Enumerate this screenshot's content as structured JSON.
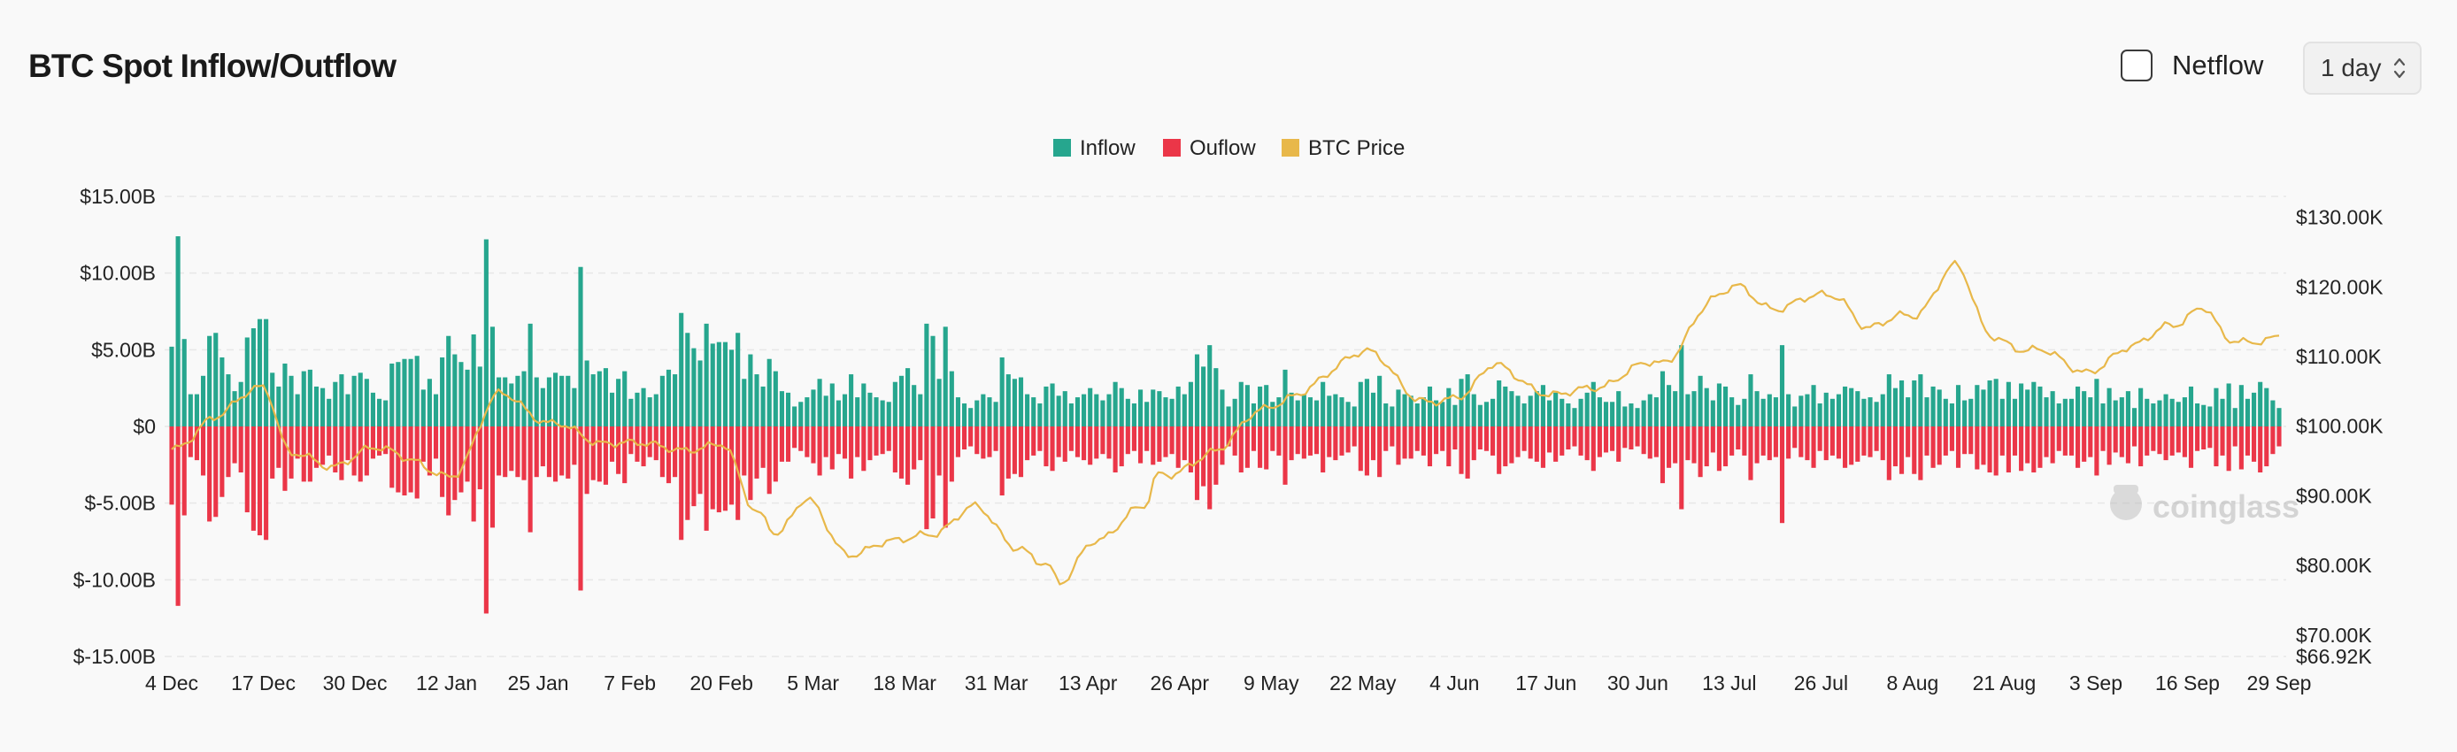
{
  "header": {
    "title": "BTC Spot Inflow/Outflow",
    "netflow_label": "Netflow",
    "netflow_checked": false,
    "interval_value": "1 day"
  },
  "colors": {
    "inflow": "#26a68e",
    "outflow": "#eb3648",
    "price": "#e8b84a",
    "grid": "#e8e8e8",
    "axis_text": "#222222"
  },
  "watermark": {
    "text": "coinglass",
    "icon": "coinglass-logo-icon"
  },
  "chart_data": {
    "type": "bar",
    "title": "",
    "legend": [
      "Inflow",
      "Ouflow",
      "BTC Price"
    ],
    "legend_position": "top-center",
    "grid": true,
    "x_start": "2024-12-04",
    "x_end": "2025-09-29",
    "x_ticks": [
      "4 Dec",
      "17 Dec",
      "30 Dec",
      "12 Jan",
      "25 Jan",
      "7 Feb",
      "20 Feb",
      "5 Mar",
      "18 Mar",
      "31 Mar",
      "13 Apr",
      "26 Apr",
      "9 May",
      "22 May",
      "4 Jun",
      "17 Jun",
      "30 Jun",
      "13 Jul",
      "26 Jul",
      "8 Aug",
      "21 Aug",
      "3 Sep",
      "16 Sep",
      "29 Sep"
    ],
    "y_left": {
      "ticks": [
        "$15.00B",
        "$10.00B",
        "$5.00B",
        "$0",
        "$-5.00B",
        "$-10.00B",
        "$-15.00B"
      ],
      "tick_values": [
        15,
        10,
        5,
        0,
        -5,
        -10,
        -15
      ],
      "range": [
        -15,
        15
      ],
      "unit": "B USD"
    },
    "y_right": {
      "ticks": [
        "$130.00K",
        "$120.00K",
        "$110.00K",
        "$100.00K",
        "$90.00K",
        "$80.00K",
        "$70.00K",
        "$66.92K"
      ],
      "tick_values": [
        130,
        120,
        110,
        100,
        90,
        80,
        70,
        66.92
      ],
      "range": [
        66.92,
        133
      ],
      "unit": "K USD"
    },
    "series": [
      {
        "name": "Inflow",
        "type": "bar",
        "values": [
          5.2,
          12.4,
          5.7,
          2.1,
          2.1,
          3.3,
          5.9,
          6.1,
          4.5,
          3.4,
          2.3,
          2.9,
          5.8,
          6.4,
          7.0,
          7.0,
          3.5,
          2.6,
          4.1,
          3.3,
          2.1,
          3.6,
          3.7,
          2.6,
          2.5,
          1.8,
          2.9,
          3.4,
          2.1,
          3.3,
          3.5,
          3.1,
          2.2,
          1.8,
          1.7,
          4.1,
          4.2,
          4.4,
          4.4,
          4.6,
          2.4,
          3.1,
          2.1,
          4.5,
          5.9,
          4.7,
          4.2,
          3.7,
          6.0,
          3.9,
          12.2,
          6.5,
          3.2,
          3.2,
          2.8,
          3.3,
          3.6,
          6.7,
          3.2,
          2.5,
          3.2,
          3.5,
          3.3,
          3.3,
          2.5,
          10.4,
          4.3,
          3.4,
          3.6,
          3.8,
          2.2,
          3.1,
          3.6,
          1.8,
          2.2,
          2.5,
          1.9,
          2.1,
          3.3,
          3.7,
          3.4,
          7.4,
          6.1,
          5.1,
          4.3,
          6.7,
          5.4,
          5.5,
          5.5,
          5.0,
          6.1,
          3.1,
          4.7,
          3.4,
          2.6,
          4.4,
          3.6,
          2.3,
          2.2,
          1.3,
          1.6,
          1.9,
          2.4,
          3.1,
          2.0,
          2.8,
          1.7,
          2.1,
          3.4,
          1.9,
          2.8,
          2.2,
          1.9,
          1.7,
          1.6,
          2.9,
          3.3,
          3.8,
          2.7,
          2.1,
          6.7,
          5.9,
          3.1,
          6.5,
          3.6,
          1.9,
          1.5,
          1.2,
          1.7,
          2.1,
          1.9,
          1.6,
          4.5,
          3.4,
          3.1,
          3.2,
          2.1,
          1.9,
          1.5,
          2.6,
          2.8,
          2.0,
          2.3,
          1.5,
          1.9,
          2.1,
          2.5,
          2.1,
          1.7,
          2.1,
          2.9,
          2.5,
          1.8,
          1.5,
          2.4,
          1.6,
          2.4,
          2.3,
          1.9,
          1.8,
          2.6,
          2.1,
          2.9,
          4.7,
          3.9,
          5.3,
          3.8,
          2.4,
          1.3,
          1.8,
          2.9,
          2.7,
          1.5,
          2.6,
          2.7,
          1.6,
          1.9,
          3.7,
          2.2,
          1.7,
          2.1,
          1.9,
          1.7,
          2.9,
          2.0,
          2.1,
          1.9,
          1.6,
          1.3,
          2.9,
          3.1,
          2.2,
          3.3,
          1.5,
          1.3,
          2.4,
          2.1,
          2.0,
          1.5,
          1.9,
          2.6,
          1.7,
          1.6,
          2.5,
          1.4,
          3.1,
          3.4,
          2.1,
          1.4,
          1.6,
          1.8,
          3.0,
          2.6,
          2.3,
          2.0,
          1.5,
          2.0,
          2.3,
          2.7,
          1.7,
          2.2,
          1.8,
          1.5,
          1.2,
          1.8,
          2.2,
          2.9,
          1.9,
          1.6,
          1.6,
          2.3,
          1.3,
          1.5,
          1.2,
          1.7,
          2.1,
          1.9,
          3.6,
          2.7,
          2.3,
          5.3,
          2.1,
          2.3,
          3.3,
          2.5,
          1.7,
          2.8,
          2.6,
          1.9,
          1.4,
          1.8,
          3.4,
          2.3,
          1.8,
          2.1,
          1.9,
          5.3,
          2.1,
          1.3,
          2.0,
          2.1,
          2.7,
          1.5,
          2.2,
          1.8,
          2.1,
          2.6,
          2.5,
          2.3,
          1.8,
          1.9,
          1.6,
          2.1,
          3.4,
          2.5,
          3.0,
          1.9,
          3.0,
          3.4,
          1.9,
          2.6,
          2.4,
          1.8,
          1.5,
          2.7,
          1.7,
          1.8,
          2.7,
          2.4,
          3.0,
          3.1,
          1.8,
          2.9,
          1.8,
          2.8,
          2.4,
          2.9,
          2.6,
          1.9,
          2.3,
          1.5,
          1.8,
          1.8,
          2.6,
          2.3,
          1.9,
          3.1,
          1.5,
          2.5,
          1.7,
          1.9,
          2.3,
          1.2,
          2.5,
          1.8,
          1.5,
          1.7,
          2.1,
          1.8,
          1.6,
          1.9,
          2.6,
          1.5,
          1.4,
          1.3,
          2.5,
          1.8,
          2.8,
          1.2,
          2.7,
          1.8,
          2.2,
          2.9,
          2.5,
          1.7,
          1.2
        ]
      },
      {
        "name": "Ouflow",
        "type": "bar",
        "values": [
          -5.1,
          -11.7,
          -5.8,
          -2.0,
          -2.2,
          -3.2,
          -6.2,
          -5.9,
          -4.6,
          -3.3,
          -2.4,
          -3.0,
          -5.6,
          -6.8,
          -7.1,
          -7.4,
          -3.4,
          -2.7,
          -4.2,
          -3.4,
          -2.1,
          -3.6,
          -3.6,
          -2.7,
          -2.5,
          -1.9,
          -3.0,
          -3.5,
          -2.2,
          -3.2,
          -3.6,
          -3.2,
          -2.1,
          -1.9,
          -1.8,
          -4.0,
          -4.3,
          -4.5,
          -4.3,
          -4.7,
          -2.3,
          -3.2,
          -2.1,
          -4.6,
          -5.8,
          -4.8,
          -4.3,
          -3.6,
          -6.2,
          -4.1,
          -12.2,
          -6.6,
          -3.2,
          -3.3,
          -2.9,
          -3.3,
          -3.5,
          -6.9,
          -3.3,
          -2.6,
          -3.3,
          -3.6,
          -3.2,
          -3.4,
          -2.5,
          -10.7,
          -4.4,
          -3.5,
          -3.6,
          -3.8,
          -2.3,
          -3.1,
          -3.7,
          -1.8,
          -2.3,
          -2.6,
          -2.0,
          -2.2,
          -3.3,
          -3.7,
          -3.3,
          -7.4,
          -6.1,
          -5.2,
          -4.4,
          -6.8,
          -5.4,
          -5.6,
          -5.5,
          -5.1,
          -6.1,
          -3.2,
          -4.8,
          -3.4,
          -2.7,
          -4.4,
          -3.6,
          -2.3,
          -2.3,
          -1.4,
          -1.6,
          -2.0,
          -2.4,
          -3.2,
          -2.0,
          -2.8,
          -1.8,
          -2.1,
          -3.4,
          -2.0,
          -2.9,
          -2.2,
          -1.9,
          -1.8,
          -1.6,
          -3.0,
          -3.4,
          -3.8,
          -2.8,
          -2.2,
          -6.7,
          -6.0,
          -3.2,
          -6.6,
          -3.6,
          -2.0,
          -1.5,
          -1.3,
          -1.8,
          -2.1,
          -2.0,
          -1.6,
          -4.5,
          -3.4,
          -3.1,
          -3.3,
          -2.2,
          -1.9,
          -1.6,
          -2.6,
          -2.9,
          -2.0,
          -2.3,
          -1.6,
          -2.0,
          -2.2,
          -2.5,
          -2.1,
          -1.8,
          -2.1,
          -3.0,
          -2.6,
          -1.8,
          -1.6,
          -2.4,
          -1.6,
          -2.5,
          -2.3,
          -2.0,
          -1.8,
          -2.7,
          -2.2,
          -3.0,
          -4.8,
          -3.9,
          -5.4,
          -3.8,
          -2.5,
          -1.3,
          -1.9,
          -3.0,
          -2.7,
          -1.6,
          -2.7,
          -2.8,
          -1.6,
          -1.9,
          -3.8,
          -2.2,
          -1.8,
          -2.1,
          -1.9,
          -1.8,
          -3.0,
          -2.0,
          -2.2,
          -1.9,
          -1.7,
          -1.3,
          -2.9,
          -3.2,
          -2.2,
          -3.3,
          -1.6,
          -1.3,
          -2.5,
          -2.1,
          -2.1,
          -1.6,
          -1.9,
          -2.6,
          -1.8,
          -1.6,
          -2.6,
          -1.5,
          -3.1,
          -3.4,
          -2.2,
          -1.5,
          -1.6,
          -1.9,
          -3.1,
          -2.6,
          -2.4,
          -2.0,
          -1.6,
          -2.1,
          -2.3,
          -2.7,
          -1.7,
          -2.3,
          -1.9,
          -1.5,
          -1.3,
          -1.9,
          -2.2,
          -2.9,
          -2.0,
          -1.7,
          -1.6,
          -2.3,
          -1.4,
          -1.5,
          -1.3,
          -1.8,
          -2.1,
          -2.0,
          -3.7,
          -2.7,
          -2.4,
          -5.4,
          -2.2,
          -2.4,
          -3.3,
          -2.6,
          -1.7,
          -2.9,
          -2.6,
          -1.9,
          -1.5,
          -1.9,
          -3.5,
          -2.4,
          -1.9,
          -2.2,
          -2.0,
          -6.3,
          -2.1,
          -1.4,
          -2.0,
          -2.2,
          -2.7,
          -1.6,
          -2.2,
          -1.9,
          -2.1,
          -2.7,
          -2.5,
          -2.3,
          -1.9,
          -2.0,
          -1.6,
          -2.2,
          -3.5,
          -2.6,
          -3.1,
          -2.0,
          -3.1,
          -3.5,
          -1.9,
          -2.7,
          -2.5,
          -1.9,
          -1.6,
          -2.7,
          -1.8,
          -1.8,
          -2.8,
          -2.5,
          -3.0,
          -3.2,
          -1.9,
          -3.0,
          -1.9,
          -2.9,
          -2.4,
          -3.0,
          -2.7,
          -2.0,
          -2.4,
          -1.6,
          -1.9,
          -1.9,
          -2.7,
          -2.3,
          -2.0,
          -3.2,
          -1.6,
          -2.5,
          -1.7,
          -2.0,
          -2.4,
          -1.3,
          -2.6,
          -1.9,
          -1.6,
          -1.8,
          -2.2,
          -1.9,
          -1.7,
          -2.0,
          -2.7,
          -1.6,
          -1.5,
          -1.4,
          -2.6,
          -1.9,
          -2.9,
          -1.3,
          -2.8,
          -1.9,
          -2.3,
          -3.0,
          -2.6,
          -1.8,
          -1.3
        ]
      },
      {
        "name": "BTC Price",
        "type": "line",
        "axis": "right",
        "x_dates": [
          "2024-12-04",
          "2024-12-10",
          "2024-12-17",
          "2024-12-21",
          "2024-12-26",
          "2025-01-01",
          "2025-01-07",
          "2025-01-13",
          "2025-01-20",
          "2025-01-27",
          "2025-02-03",
          "2025-02-10",
          "2025-02-20",
          "2025-02-25",
          "2025-02-28",
          "2025-03-04",
          "2025-03-10",
          "2025-03-16",
          "2025-03-22",
          "2025-03-28",
          "2025-04-03",
          "2025-04-07",
          "2025-04-09",
          "2025-04-14",
          "2025-04-21",
          "2025-04-23",
          "2025-05-01",
          "2025-05-08",
          "2025-05-12",
          "2025-05-22",
          "2025-05-30",
          "2025-06-05",
          "2025-06-10",
          "2025-06-18",
          "2025-06-24",
          "2025-07-03",
          "2025-07-11",
          "2025-07-14",
          "2025-07-20",
          "2025-07-28",
          "2025-08-02",
          "2025-08-08",
          "2025-08-14",
          "2025-08-19",
          "2025-08-25",
          "2025-09-01",
          "2025-09-08",
          "2025-09-14",
          "2025-09-18",
          "2025-09-22",
          "2025-09-29"
        ],
        "values": [
          97,
          101,
          106,
          96,
          94,
          97,
          95,
          93,
          105,
          100,
          98,
          97,
          97,
          88,
          85,
          89,
          82,
          83,
          85,
          88,
          83,
          80,
          77,
          84,
          88,
          93,
          96,
          103,
          104,
          111,
          104,
          104,
          109,
          104,
          106,
          109,
          118,
          120,
          117,
          119,
          114,
          116,
          123,
          113,
          111,
          108,
          111,
          115,
          117,
          112,
          113
        ]
      }
    ]
  }
}
